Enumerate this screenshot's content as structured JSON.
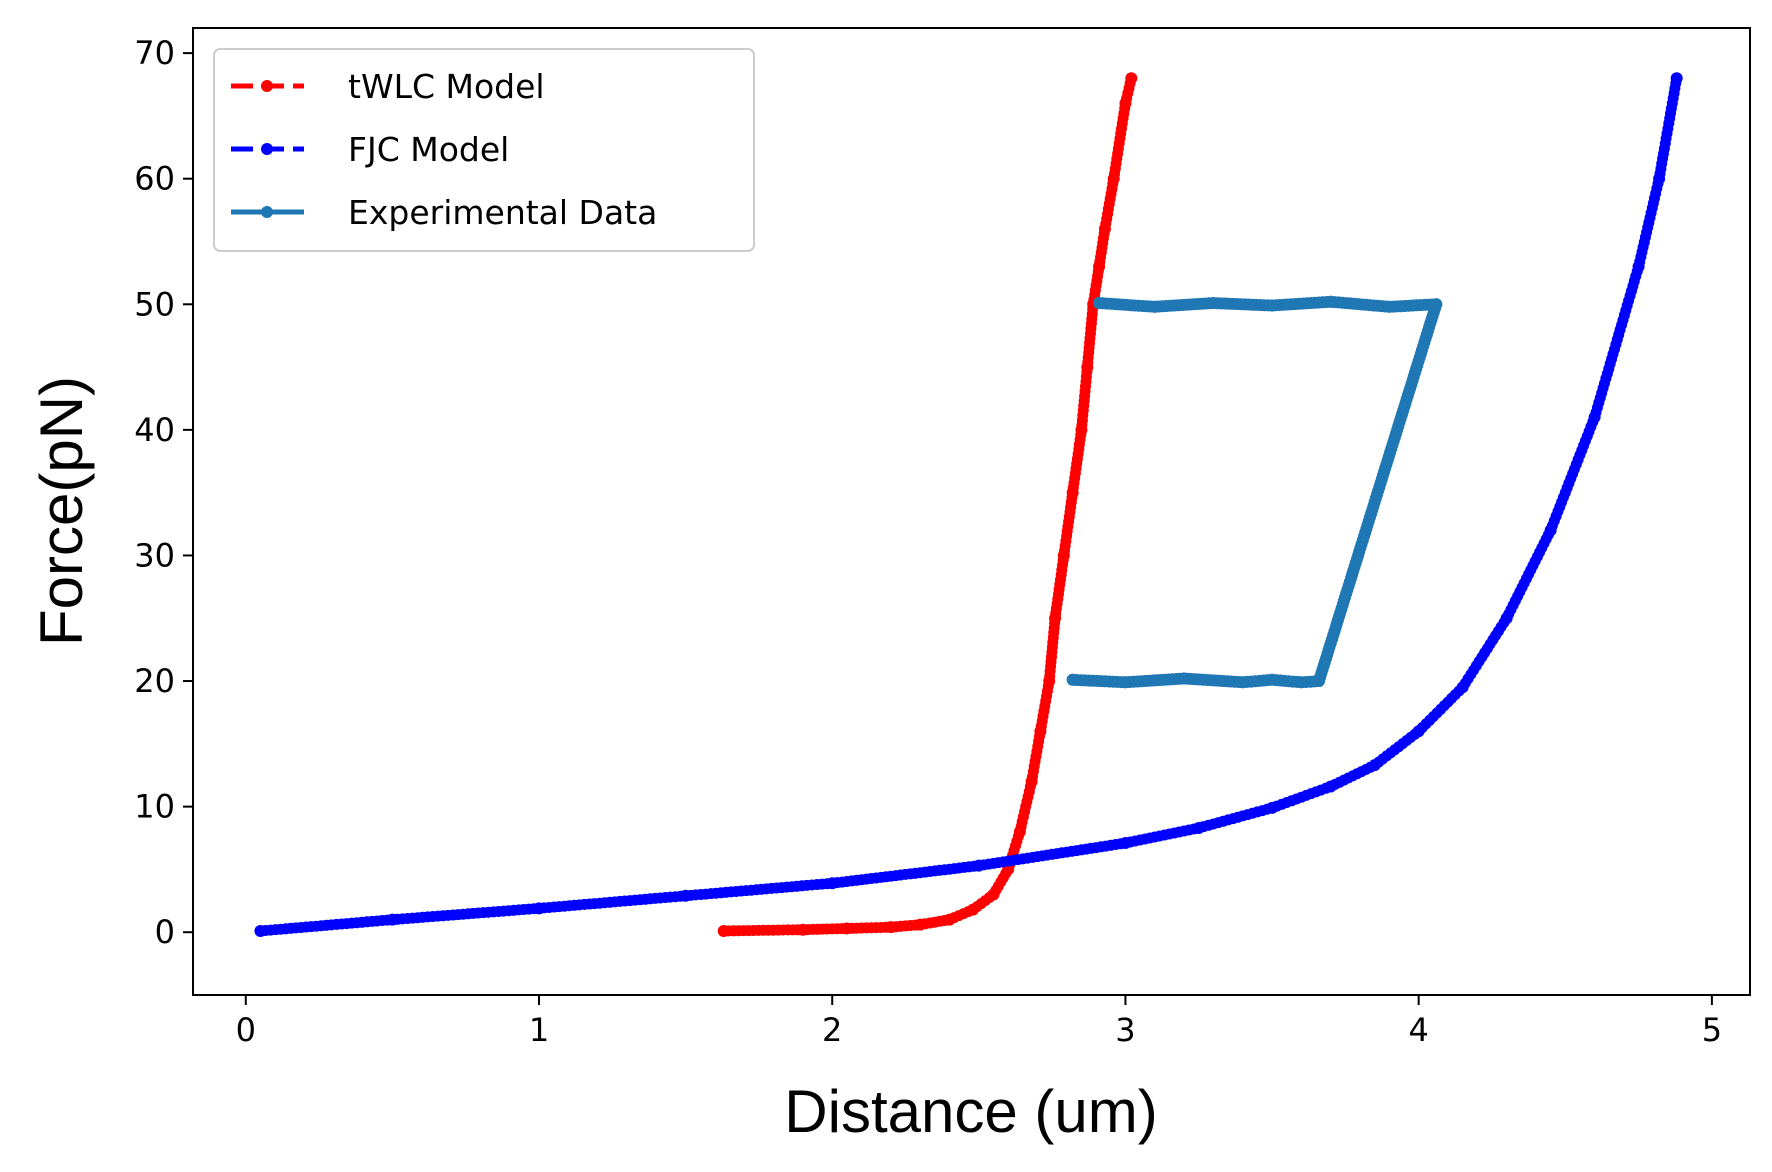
{
  "chart_data": {
    "type": "line",
    "title": "",
    "xlabel": "Distance (um)",
    "ylabel": "Force(pN)",
    "xlim": [
      -0.18,
      5.13
    ],
    "ylim": [
      -5,
      72
    ],
    "xticks": [
      0,
      1,
      2,
      3,
      4,
      5
    ],
    "xtick_labels": [
      "0",
      "1",
      "2",
      "3",
      "4",
      "5"
    ],
    "yticks": [
      0,
      10,
      20,
      30,
      40,
      50,
      60,
      70
    ],
    "ytick_labels": [
      "0",
      "10",
      "20",
      "30",
      "40",
      "50",
      "60",
      "70"
    ],
    "grid": false,
    "legend_position": "top-left",
    "series": [
      {
        "name": "tWLC Model",
        "color": "#ff0000",
        "style": "dashed-dotted-markers",
        "x": [
          1.63,
          1.9,
          2.05,
          2.2,
          2.3,
          2.4,
          2.48,
          2.55,
          2.6,
          2.64,
          2.68,
          2.71,
          2.74,
          2.76,
          2.79,
          2.82,
          2.85,
          2.87,
          2.89,
          2.91,
          2.93,
          2.96,
          3.0,
          3.02
        ],
        "y": [
          0.1,
          0.2,
          0.3,
          0.4,
          0.6,
          1.0,
          1.8,
          3.0,
          5.0,
          8.0,
          12.0,
          16.0,
          20.0,
          25.0,
          30.0,
          35.0,
          40.0,
          45.0,
          50.0,
          53.0,
          56.0,
          60.0,
          66.0,
          68.0
        ]
      },
      {
        "name": "FJC Model",
        "color": "#0000ff",
        "style": "dashed-dotted-markers",
        "x": [
          0.05,
          0.5,
          1.0,
          1.5,
          2.0,
          2.5,
          3.0,
          3.25,
          3.5,
          3.7,
          3.85,
          4.0,
          4.15,
          4.3,
          4.45,
          4.6,
          4.75,
          4.82,
          4.88
        ],
        "y": [
          0.1,
          1.0,
          1.9,
          2.9,
          3.9,
          5.3,
          7.1,
          8.3,
          9.9,
          11.6,
          13.3,
          16.0,
          19.5,
          25.0,
          32.0,
          41.0,
          53.0,
          60.0,
          68.0
        ]
      },
      {
        "name": "Experimental Data",
        "color": "#1f77b4",
        "style": "solid-dotted-markers",
        "x": [
          2.82,
          3.0,
          3.2,
          3.4,
          3.5,
          3.6,
          3.66,
          4.06,
          3.9,
          3.7,
          3.5,
          3.3,
          3.1,
          2.91
        ],
        "y": [
          20.1,
          19.9,
          20.2,
          19.9,
          20.1,
          19.9,
          20.0,
          50.0,
          49.8,
          50.2,
          49.9,
          50.1,
          49.8,
          50.1
        ]
      }
    ]
  }
}
